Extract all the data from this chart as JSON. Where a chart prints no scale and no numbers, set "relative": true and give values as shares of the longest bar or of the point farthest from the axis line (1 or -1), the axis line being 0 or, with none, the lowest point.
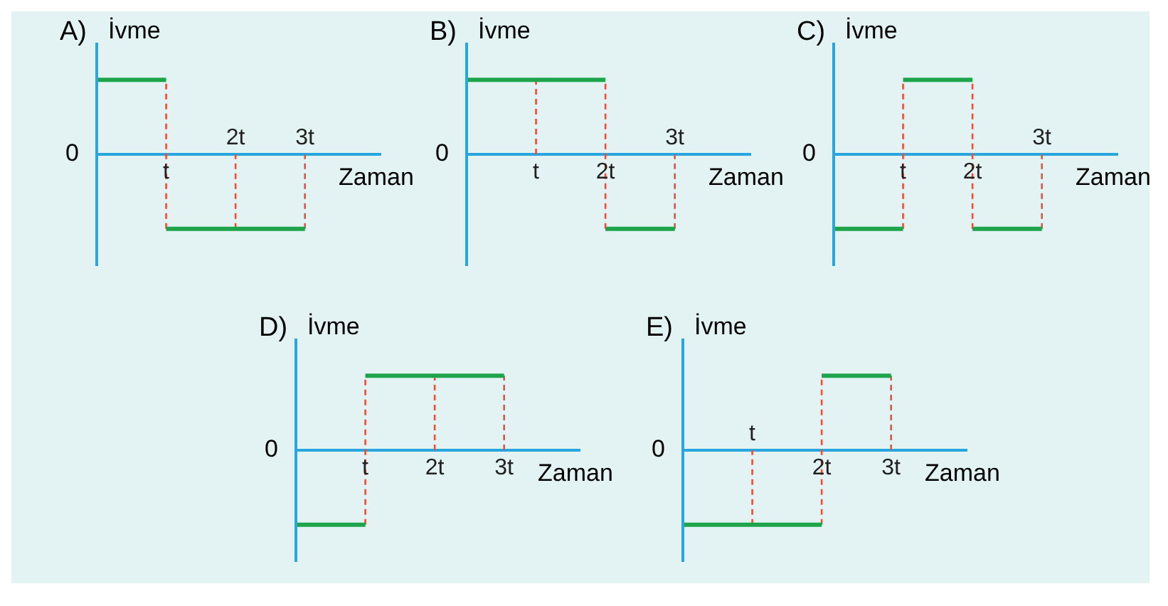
{
  "chart_data": [
    {
      "type": "step",
      "title": "A)",
      "ylabel": "İvme",
      "xlabel": "Zaman",
      "relative": true,
      "categories": [
        null,
        "t",
        "2t",
        "3t"
      ],
      "values": [
        1,
        -1,
        -1,
        -1
      ],
      "color": "#1ea54b",
      "marker": "none",
      "annotations": [
        "0"
      ],
      "ref_lines": [
        {
          "axis": "x",
          "value": "t",
          "color": "#e8503a",
          "line_style": "dashed"
        },
        {
          "axis": "x",
          "value": "2t",
          "color": "#e8503a",
          "line_style": "dashed"
        },
        {
          "axis": "x",
          "value": "3t",
          "color": "#e8503a",
          "line_style": "dashed"
        }
      ]
    },
    {
      "type": "step",
      "title": "B)",
      "ylabel": "İvme",
      "xlabel": "Zaman",
      "relative": true,
      "categories": [
        null,
        "t",
        "2t",
        "3t"
      ],
      "values": [
        1,
        1,
        -1,
        -1
      ],
      "color": "#1ea54b",
      "marker": "none",
      "annotations": [
        "0"
      ],
      "ref_lines": [
        {
          "axis": "x",
          "value": "t",
          "color": "#e8503a",
          "line_style": "dashed"
        },
        {
          "axis": "x",
          "value": "2t",
          "color": "#e8503a",
          "line_style": "dashed"
        },
        {
          "axis": "x",
          "value": "3t",
          "color": "#e8503a",
          "line_style": "dashed"
        }
      ]
    },
    {
      "type": "step",
      "title": "C)",
      "ylabel": "İvme",
      "xlabel": "Zaman",
      "relative": true,
      "categories": [
        null,
        "t",
        "2t",
        "3t"
      ],
      "values": [
        -1,
        1,
        -1,
        -1
      ],
      "color": "#1ea54b",
      "marker": "none",
      "annotations": [
        "0"
      ],
      "ref_lines": [
        {
          "axis": "x",
          "value": "t",
          "color": "#e8503a",
          "line_style": "dashed"
        },
        {
          "axis": "x",
          "value": "2t",
          "color": "#e8503a",
          "line_style": "dashed"
        },
        {
          "axis": "x",
          "value": "3t",
          "color": "#e8503a",
          "line_style": "dashed"
        }
      ]
    },
    {
      "type": "step",
      "title": "D)",
      "ylabel": "İvme",
      "xlabel": "Zaman",
      "relative": true,
      "categories": [
        null,
        "t",
        "2t",
        "3t"
      ],
      "values": [
        -1,
        1,
        1,
        1
      ],
      "color": "#1ea54b",
      "marker": "none",
      "annotations": [
        "0"
      ],
      "ref_lines": [
        {
          "axis": "x",
          "value": "t",
          "color": "#e8503a",
          "line_style": "dashed"
        },
        {
          "axis": "x",
          "value": "2t",
          "color": "#e8503a",
          "line_style": "dashed"
        },
        {
          "axis": "x",
          "value": "3t",
          "color": "#e8503a",
          "line_style": "dashed"
        }
      ]
    },
    {
      "type": "step",
      "title": "E)",
      "ylabel": "İvme",
      "xlabel": "Zaman",
      "relative": true,
      "categories": [
        null,
        "t",
        "2t",
        "3t"
      ],
      "values": [
        -1,
        -1,
        1,
        1
      ],
      "color": "#1ea54b",
      "marker": "none",
      "annotations": [
        "0"
      ],
      "ref_lines": [
        {
          "axis": "x",
          "value": "t",
          "color": "#e8503a",
          "line_style": "dashed"
        },
        {
          "axis": "x",
          "value": "2t",
          "color": "#e8503a",
          "line_style": "dashed"
        },
        {
          "axis": "x",
          "value": "3t",
          "color": "#e8503a",
          "line_style": "dashed"
        }
      ]
    }
  ]
}
